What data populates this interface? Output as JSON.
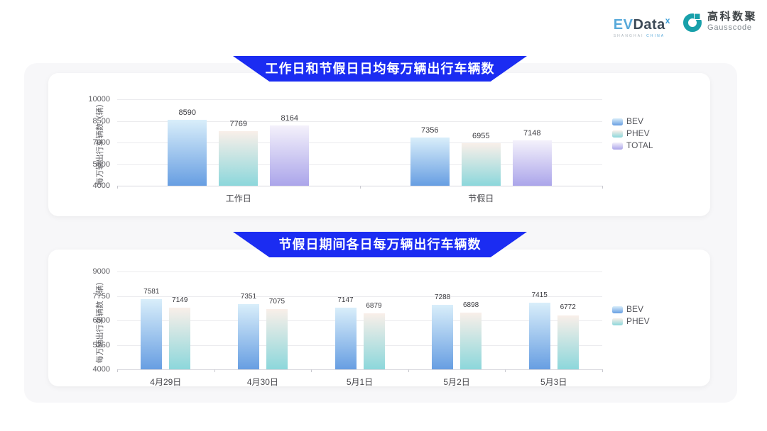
{
  "header": {
    "evdata_logo": {
      "text_ev": "EV",
      "text_data": "Data",
      "superscript": "x",
      "tagline_left": "SHANGHAI",
      "tagline_right": "CHINA"
    },
    "gausscode_logo": {
      "name_cn": "高科数聚",
      "name_en": "Gausscode",
      "icon": "g-ring-icon",
      "icon_color": "#18a0aa"
    }
  },
  "colors": {
    "banner_blue": "#1b2cf2",
    "bev_gradient_top": "#d9eefa",
    "bev_gradient_bottom": "#679ee2",
    "phev_gradient_top": "#f9efe9",
    "phev_gradient_bottom": "#8cd7db",
    "total_gradient_top": "#f4f1fb",
    "total_gradient_bottom": "#aba5ea",
    "panel_background": "#f7f7f9",
    "card_background": "#ffffff"
  },
  "chart_data": [
    {
      "type": "bar",
      "title": "工作日和节假日日均每万辆出行车辆数",
      "ylabel": "每万辆出行车辆数（辆）",
      "xlabel": "",
      "ylim": [
        4000,
        10000
      ],
      "yticks": [
        4000,
        5500,
        7000,
        8500,
        10000
      ],
      "categories": [
        "工作日",
        "节假日"
      ],
      "series": [
        {
          "name": "BEV",
          "values": [
            8590,
            7356
          ]
        },
        {
          "name": "PHEV",
          "values": [
            7769,
            6955
          ]
        },
        {
          "name": "TOTAL",
          "values": [
            8164,
            7148
          ]
        }
      ],
      "legend": [
        "BEV",
        "PHEV",
        "TOTAL"
      ],
      "legend_position": "right",
      "grid": true
    },
    {
      "type": "bar",
      "title": "节假日期间各日每万辆出行车辆数",
      "ylabel": "每万辆出行车辆数（辆）",
      "xlabel": "",
      "ylim": [
        4000,
        9000
      ],
      "yticks": [
        4000,
        5250,
        6500,
        7750,
        9000
      ],
      "categories": [
        "4月29日",
        "4月30日",
        "5月1日",
        "5月2日",
        "5月3日"
      ],
      "series": [
        {
          "name": "BEV",
          "values": [
            7581,
            7351,
            7147,
            7288,
            7415
          ]
        },
        {
          "name": "PHEV",
          "values": [
            7149,
            7075,
            6879,
            6898,
            6772
          ]
        }
      ],
      "legend": [
        "BEV",
        "PHEV"
      ],
      "legend_position": "right",
      "grid": true
    }
  ]
}
